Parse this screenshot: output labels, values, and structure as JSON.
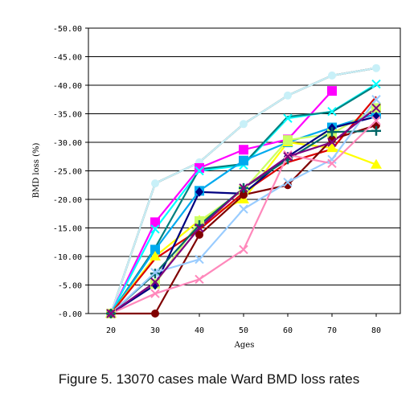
{
  "caption": "Figure 5. 13070 cases male Ward BMD loss rates",
  "chart_data": {
    "type": "line",
    "title": "",
    "xlabel": "Ages",
    "ylabel": "BMD loss (%)",
    "categories": [
      "20",
      "30",
      "40",
      "50",
      "60",
      "70",
      "80"
    ],
    "ylim": [
      0,
      -50
    ],
    "yticks": [
      "-50.00",
      "-45.00",
      "-40.00",
      "-35.00",
      "-30.00",
      "-25.00",
      "-20.00",
      "-15.00",
      "-10.00",
      "-5.00",
      "-0.00"
    ],
    "grid": "horizontal",
    "legend": "none",
    "series": [
      {
        "color": "#000000",
        "marker": "none",
        "values": [
          0,
          -22.8,
          -26.5,
          -33.2,
          -38.2,
          -41.7,
          -43.0
        ]
      },
      {
        "color": "#c8f0f8",
        "marker": "circle",
        "values": [
          0,
          -22.8,
          -26.5,
          -33.2,
          -38.2,
          -41.7,
          -43.0
        ]
      },
      {
        "color": "#ff00ff",
        "marker": "square",
        "values": [
          0,
          -16.0,
          -25.5,
          -28.7,
          -30.5,
          -39.0,
          null
        ]
      },
      {
        "color": "#00ffff",
        "marker": "x",
        "values": [
          0,
          -14.8,
          -25.0,
          -26.0,
          -34.2,
          -35.4,
          -40.2
        ]
      },
      {
        "color": "#008080",
        "marker": "none",
        "values": [
          0,
          -11.5,
          -25.3,
          -26.2,
          -34.5,
          -35.3,
          -40.0
        ]
      },
      {
        "color": "#00aaee",
        "marker": "square",
        "values": [
          0,
          -11.2,
          -21.5,
          -26.8,
          -30.0,
          -32.6,
          -35.0
        ]
      },
      {
        "color": "#ffff00",
        "marker": "triangle",
        "values": [
          0,
          -10.0,
          -16.3,
          -20.0,
          -30.0,
          -29.0,
          -26.1
        ]
      },
      {
        "color": "#ccff66",
        "marker": "square",
        "values": [
          0,
          -5.2,
          -16.2,
          -21.6,
          -30.4,
          -31.5,
          -36.0
        ]
      },
      {
        "color": "#dd0000",
        "marker": "none",
        "values": [
          0,
          -9.6,
          -14.7,
          -21.2,
          -26.5,
          -28.8,
          -38.0
        ]
      },
      {
        "color": "#000080",
        "marker": "diamond",
        "values": [
          0,
          -5.0,
          -21.3,
          -21.0,
          -27.5,
          -32.5,
          -34.5
        ]
      },
      {
        "color": "#800000",
        "marker": "circle",
        "values": [
          0,
          0,
          -13.8,
          -20.8,
          -22.5,
          -30.5,
          -33.0
        ]
      },
      {
        "color": "#006666",
        "marker": "plus",
        "values": [
          0,
          -7.0,
          -15.5,
          -22.0,
          -27.0,
          -31.8,
          -32.0
        ]
      },
      {
        "color": "#99ccff",
        "marker": "x",
        "values": [
          0,
          -7.2,
          -9.5,
          -18.3,
          -23.0,
          -27.0,
          -37.5
        ]
      },
      {
        "color": "#ff88bb",
        "marker": "x",
        "values": [
          0,
          -3.5,
          -6.0,
          -11.2,
          -27.8,
          -26.3,
          -33.8
        ]
      },
      {
        "color": "#800080",
        "marker": "x",
        "values": [
          0,
          -5.5,
          -15.0,
          -22.0,
          -27.5,
          -30.0,
          -36.0
        ]
      }
    ]
  }
}
